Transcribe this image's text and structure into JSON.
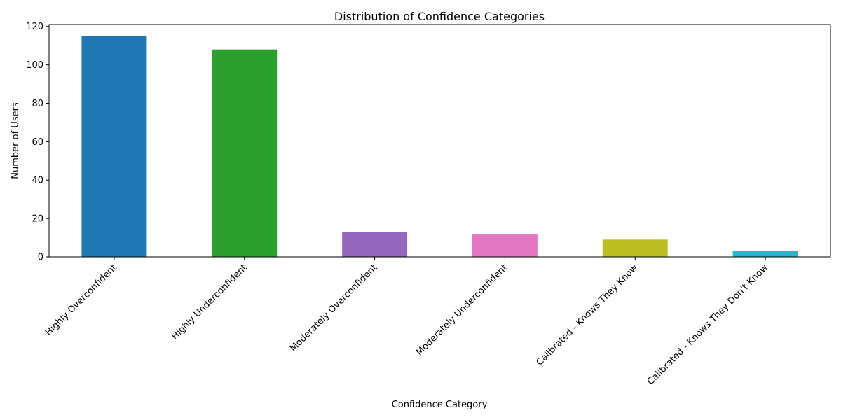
{
  "chart_data": {
    "type": "bar",
    "title": "Distribution of Confidence Categories",
    "xlabel": "Confidence Category",
    "ylabel": "Number of Users",
    "categories": [
      "Highly Overconfident",
      "Highly Underconfident",
      "Moderately Overconfident",
      "Moderately Underconfident",
      "Calibrated - Knows They Know",
      "Calibrated - Knows They Don't Know"
    ],
    "values": [
      115,
      108,
      13,
      12,
      9,
      3
    ],
    "colors": [
      "#1f77b4",
      "#2ca02c",
      "#9467bd",
      "#e377c2",
      "#bcbd22",
      "#17becf"
    ],
    "ylim": [
      0,
      121
    ],
    "yticks": [
      0,
      20,
      40,
      60,
      80,
      100,
      120
    ],
    "grid": false,
    "legend": "none"
  }
}
